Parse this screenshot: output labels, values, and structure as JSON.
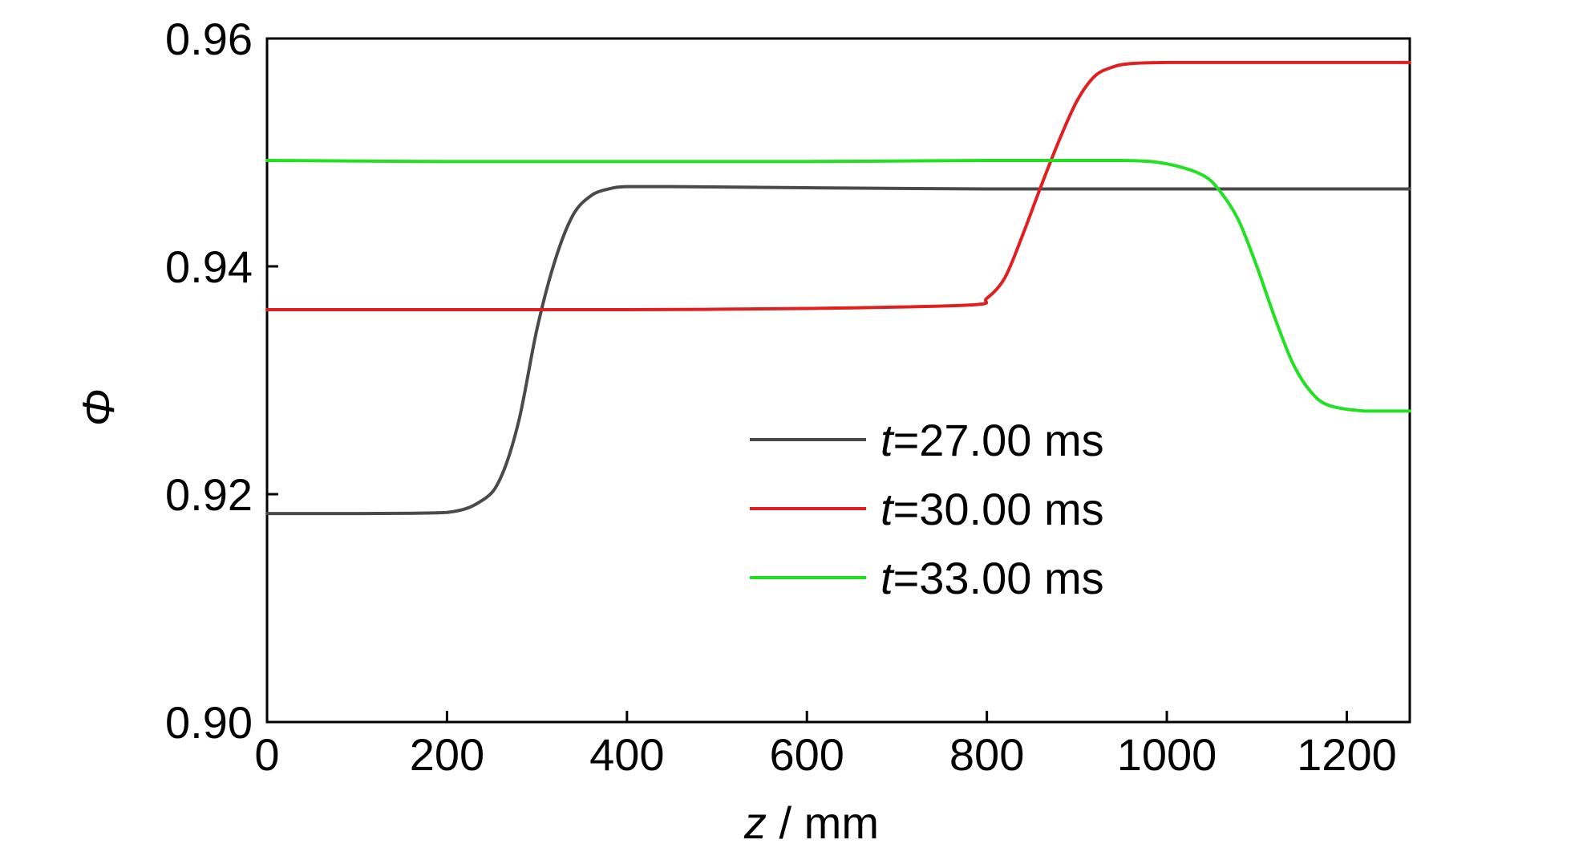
{
  "chart_data": {
    "type": "line",
    "xlabel": {
      "italic": "z",
      "rest": " / mm"
    },
    "ylabel": "Φ",
    "xlim": [
      0,
      1270
    ],
    "ylim": [
      0.9,
      0.96
    ],
    "xticks": [
      "0",
      "200",
      "400",
      "600",
      "800",
      "1000",
      "1200"
    ],
    "xtick_values": [
      0,
      200,
      400,
      600,
      800,
      1000,
      1200
    ],
    "yticks": [
      "0.90",
      "0.92",
      "0.94",
      "0.96"
    ],
    "ytick_values": [
      0.9,
      0.92,
      0.94,
      0.96
    ],
    "grid": false,
    "legend_position": "center-right",
    "series": [
      {
        "name": "t=27.00 ms",
        "legend_italic": "t",
        "legend_rest": "=27.00 ms",
        "color": "#4a4a4a",
        "x": [
          0,
          100,
          200,
          240,
          260,
          280,
          300,
          320,
          340,
          360,
          380,
          400,
          450,
          600,
          800,
          1000,
          1270
        ],
        "y": [
          0.9183,
          0.9183,
          0.9184,
          0.9195,
          0.9215,
          0.9265,
          0.9345,
          0.9405,
          0.9445,
          0.9462,
          0.9468,
          0.947,
          0.947,
          0.9469,
          0.9468,
          0.9468,
          0.9468
        ]
      },
      {
        "name": "t=30.00 ms",
        "legend_italic": "t",
        "legend_rest": "=30.00 ms",
        "color": "#e02020",
        "x": [
          0,
          200,
          400,
          600,
          780,
          800,
          820,
          840,
          860,
          880,
          900,
          920,
          940,
          960,
          1000,
          1100,
          1270
        ],
        "y": [
          0.9362,
          0.9362,
          0.9362,
          0.9363,
          0.9366,
          0.9372,
          0.939,
          0.9428,
          0.947,
          0.951,
          0.9545,
          0.9567,
          0.9575,
          0.9578,
          0.9579,
          0.9579,
          0.9579
        ]
      },
      {
        "name": "t=33.00 ms",
        "legend_italic": "t",
        "legend_rest": "=33.00 ms",
        "color": "#22e022",
        "x": [
          0,
          200,
          400,
          600,
          800,
          950,
          1000,
          1040,
          1060,
          1080,
          1100,
          1120,
          1140,
          1160,
          1180,
          1220,
          1270
        ],
        "y": [
          0.9493,
          0.9492,
          0.9492,
          0.9492,
          0.9493,
          0.9493,
          0.949,
          0.948,
          0.9465,
          0.944,
          0.94,
          0.9355,
          0.9315,
          0.929,
          0.9278,
          0.9273,
          0.9273
        ]
      }
    ]
  }
}
